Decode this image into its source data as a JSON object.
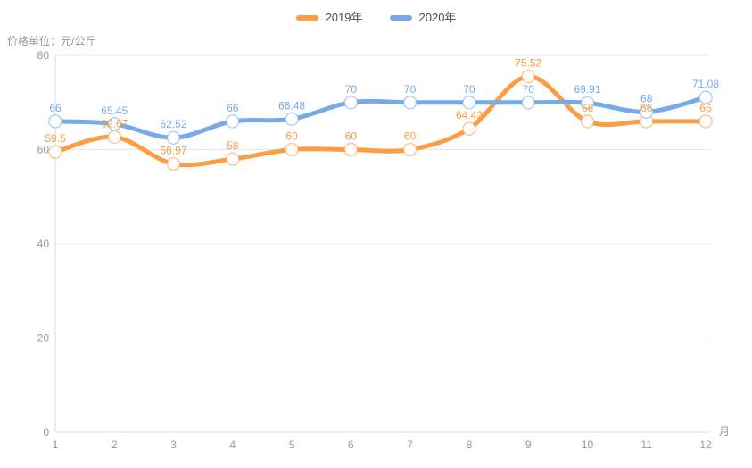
{
  "legend": {
    "items": [
      {
        "label": "2019年",
        "color": "#fa9d45"
      },
      {
        "label": "2020年",
        "color": "#76aae9"
      }
    ]
  },
  "chart_data": {
    "type": "line",
    "unit_label": "价格单位：元/公斤",
    "x_axis_name": "月",
    "categories": [
      1,
      2,
      3,
      4,
      5,
      6,
      7,
      8,
      9,
      10,
      11,
      12
    ],
    "series": [
      {
        "name": "2019年",
        "color": "#fa9d45",
        "values": [
          59.5,
          62.67,
          56.97,
          58,
          60,
          60,
          60,
          64.42,
          75.52,
          66,
          66,
          66
        ]
      },
      {
        "name": "2020年",
        "color": "#76aae9",
        "values": [
          66,
          65.45,
          62.52,
          66,
          66.48,
          70,
          70,
          70,
          70,
          69.91,
          68,
          71.08
        ]
      }
    ],
    "ylim": [
      0,
      80
    ],
    "yticks": [
      0,
      20,
      40,
      60,
      80
    ],
    "grid": true,
    "smooth": true,
    "show_point_labels": true,
    "legend_position": "top-center"
  },
  "style": {
    "axis_text_color": "#999999",
    "grid_line_color": "#e8e8e8",
    "axis_line_color": "#dcdcdc",
    "marker_fill": "#ffffff",
    "background": "#ffffff"
  }
}
